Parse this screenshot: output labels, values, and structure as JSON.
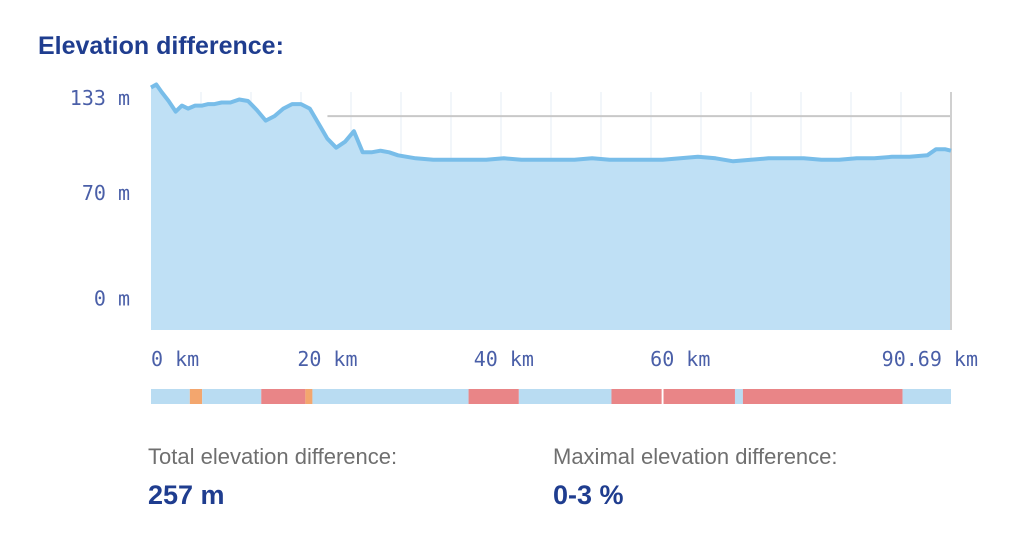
{
  "title": "Elevation difference:",
  "chart_data": {
    "type": "area",
    "y_ticks": [
      "133 m",
      "70 m",
      "0 m"
    ],
    "y_tick_values": [
      133,
      70,
      0
    ],
    "x_ticks": [
      "0 km",
      "20 km",
      "40 km",
      "60 km",
      "90.69 km"
    ],
    "x_tick_values": [
      0,
      20,
      40,
      60,
      90.69
    ],
    "xlim": [
      0,
      90.69
    ],
    "ylim": [
      -21,
      137
    ],
    "reference_line_m": 121,
    "x": [
      0,
      0.6,
      1.2,
      2.0,
      2.8,
      3.5,
      4.2,
      5.0,
      5.8,
      6.5,
      7.2,
      8.0,
      9.0,
      10.0,
      11.0,
      12.0,
      13.0,
      14.0,
      15.0,
      16.0,
      17.0,
      18.0,
      19.0,
      20.0,
      21.0,
      22.0,
      23.0,
      24.0,
      25.0,
      26.0,
      27.0,
      28.0,
      29.0,
      30.0,
      32.0,
      34.0,
      36.0,
      38.0,
      40.0,
      42.0,
      44.0,
      46.0,
      48.0,
      50.0,
      52.0,
      54.0,
      56.0,
      58.0,
      60.0,
      62.0,
      64.0,
      66.0,
      68.0,
      70.0,
      72.0,
      74.0,
      76.0,
      78.0,
      80.0,
      82.0,
      84.0,
      86.0,
      88.0,
      89.0,
      90.0,
      90.69
    ],
    "y": [
      140,
      142,
      137,
      131,
      124,
      128,
      126,
      128,
      128,
      129,
      129,
      130,
      130,
      132,
      131,
      125,
      118,
      121,
      126,
      129,
      129,
      126,
      116,
      106,
      100,
      104,
      111,
      97,
      97,
      98,
      97,
      95,
      94,
      93,
      92,
      92,
      92,
      92,
      93,
      92,
      92,
      92,
      92,
      93,
      92,
      92,
      92,
      92,
      93,
      94,
      93,
      91,
      92,
      93,
      93,
      93,
      92,
      92,
      93,
      93,
      94,
      94,
      95,
      99,
      99,
      98
    ],
    "segments": [
      {
        "from": 0,
        "to": 4.4,
        "color": "#b9dcf2"
      },
      {
        "from": 4.4,
        "to": 5.8,
        "color": "#f3a66e"
      },
      {
        "from": 5.8,
        "to": 12.5,
        "color": "#b9dcf2"
      },
      {
        "from": 12.5,
        "to": 17.5,
        "color": "#e98587"
      },
      {
        "from": 17.5,
        "to": 18.3,
        "color": "#f3a66e"
      },
      {
        "from": 18.3,
        "to": 36.0,
        "color": "#b9dcf2"
      },
      {
        "from": 36.0,
        "to": 41.7,
        "color": "#e98587"
      },
      {
        "from": 41.7,
        "to": 52.2,
        "color": "#b9dcf2"
      },
      {
        "from": 52.2,
        "to": 57.9,
        "color": "#e98587"
      },
      {
        "from": 57.9,
        "to": 58.1,
        "color": "#ffffff"
      },
      {
        "from": 58.1,
        "to": 66.2,
        "color": "#e98587"
      },
      {
        "from": 66.2,
        "to": 67.1,
        "color": "#b9dcf2"
      },
      {
        "from": 67.1,
        "to": 85.2,
        "color": "#e98587"
      },
      {
        "from": 85.2,
        "to": 90.69,
        "color": "#b9dcf2"
      }
    ],
    "colors": {
      "line": "#78bde9",
      "area": "#bfe0f5",
      "axis_text": "#4a5fa8",
      "grid": "#e6eef5"
    }
  },
  "stats": {
    "total_label": "Total elevation difference:",
    "total_value": "257 m",
    "max_label": "Maximal elevation difference:",
    "max_value": "0-3 %"
  }
}
